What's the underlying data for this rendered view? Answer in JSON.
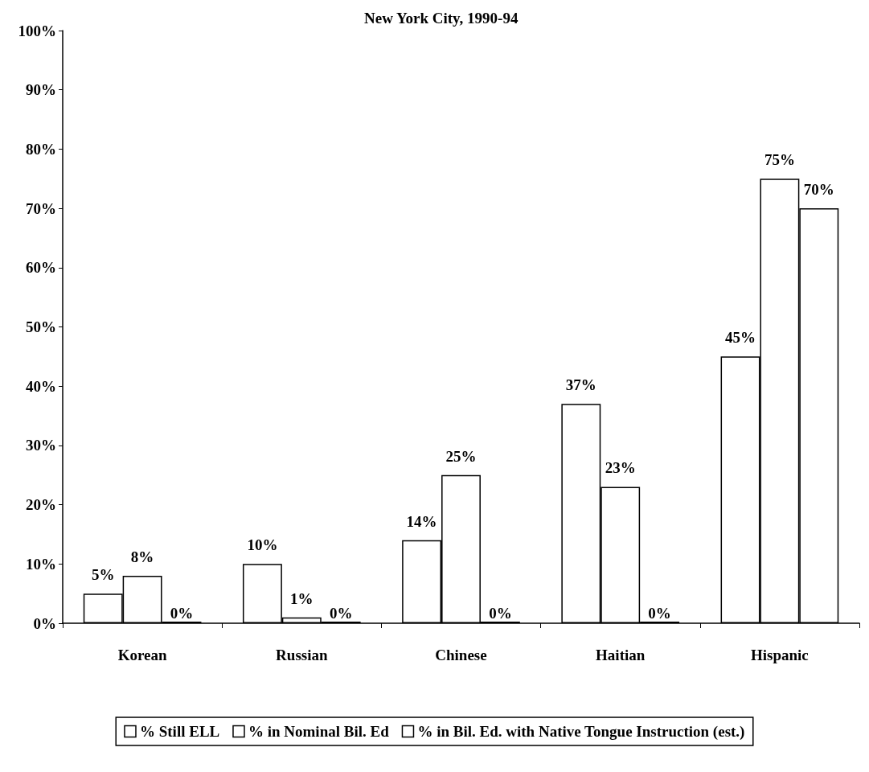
{
  "chart_data": {
    "type": "bar",
    "title": "New York City, 1990-94",
    "categories": [
      "Korean",
      "Russian",
      "Chinese",
      "Haitian",
      "Hispanic"
    ],
    "series": [
      {
        "name": "% Still ELL",
        "color": "#ffffff",
        "values": [
          5,
          10,
          14,
          37,
          45
        ],
        "value_labels": [
          "5%",
          "10%",
          "14%",
          "37%",
          "45%"
        ]
      },
      {
        "name": "% in Nominal Bil. Ed",
        "color": "#ffffff",
        "values": [
          8,
          1,
          25,
          23,
          75
        ],
        "value_labels": [
          "8%",
          "1%",
          "25%",
          "23%",
          "75%"
        ]
      },
      {
        "name": "% in Bil. Ed. with Native Tongue Instruction (est.)",
        "color": "#ffffff",
        "values": [
          0,
          0,
          0,
          0,
          70
        ],
        "value_labels": [
          "0%",
          "0%",
          "0%",
          "0%",
          "70%"
        ]
      }
    ],
    "ylim": [
      0,
      100
    ],
    "yticks": [
      {
        "value": 0,
        "label": "0%"
      },
      {
        "value": 10,
        "label": "10%"
      },
      {
        "value": 20,
        "label": "20%"
      },
      {
        "value": 30,
        "label": "30%"
      },
      {
        "value": 40,
        "label": "40%"
      },
      {
        "value": 50,
        "label": "50%"
      },
      {
        "value": 60,
        "label": "60%"
      },
      {
        "value": 70,
        "label": "70%"
      },
      {
        "value": 80,
        "label": "80%"
      },
      {
        "value": 90,
        "label": "90%"
      },
      {
        "value": 100,
        "label": "100%"
      }
    ],
    "grid": false,
    "legend": "bottom"
  }
}
